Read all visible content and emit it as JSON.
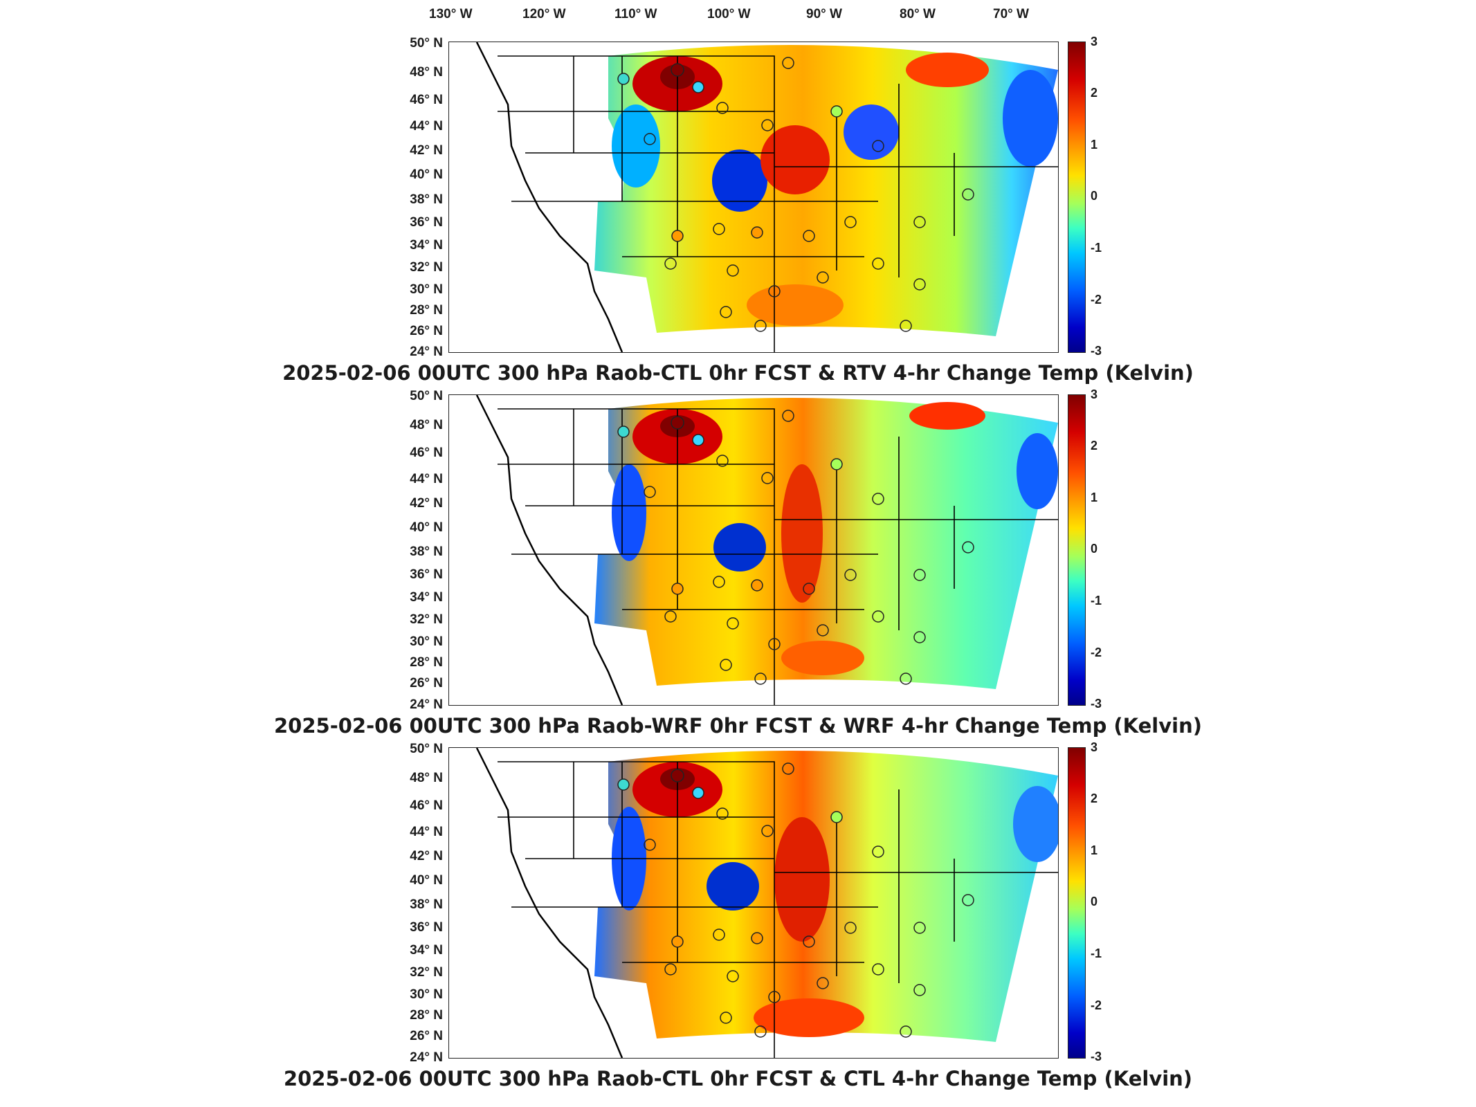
{
  "longitude_labels": [
    "130° W",
    "120° W",
    "110° W",
    "100° W",
    "90° W",
    "80° W",
    "70° W"
  ],
  "latitude_labels": [
    "50° N",
    "48° N",
    "46° N",
    "44° N",
    "42° N",
    "40° N",
    "38° N",
    "36° N",
    "34° N",
    "32° N",
    "30° N",
    "28° N",
    "26° N",
    "24° N"
  ],
  "colorbar": {
    "ticks": [
      "3",
      "2",
      "1",
      "0",
      "-1",
      "-2",
      "-3"
    ],
    "range": [
      -3,
      3
    ],
    "colormap": "jet",
    "colors": [
      "#800000",
      "#ff0000",
      "#ffff00",
      "#00ffff",
      "#0000ff",
      "#00008a"
    ]
  },
  "panels": [
    {
      "title": "2025-02-06 00UTC 300 hPa Raob-CTL 0hr FCST & RTV 4-hr Change Temp (Kelvin)"
    },
    {
      "title": "2025-02-06 00UTC 300 hPa Raob-WRF 0hr FCST & WRF 4-hr Change Temp (Kelvin)"
    },
    {
      "title": "2025-02-06 00UTC 300 hPa Raob-CTL 0hr FCST & CTL 4-hr Change Temp (Kelvin)"
    }
  ],
  "map_icons": [
    "state-boundaries",
    "coastline",
    "raob-station-marker"
  ]
}
